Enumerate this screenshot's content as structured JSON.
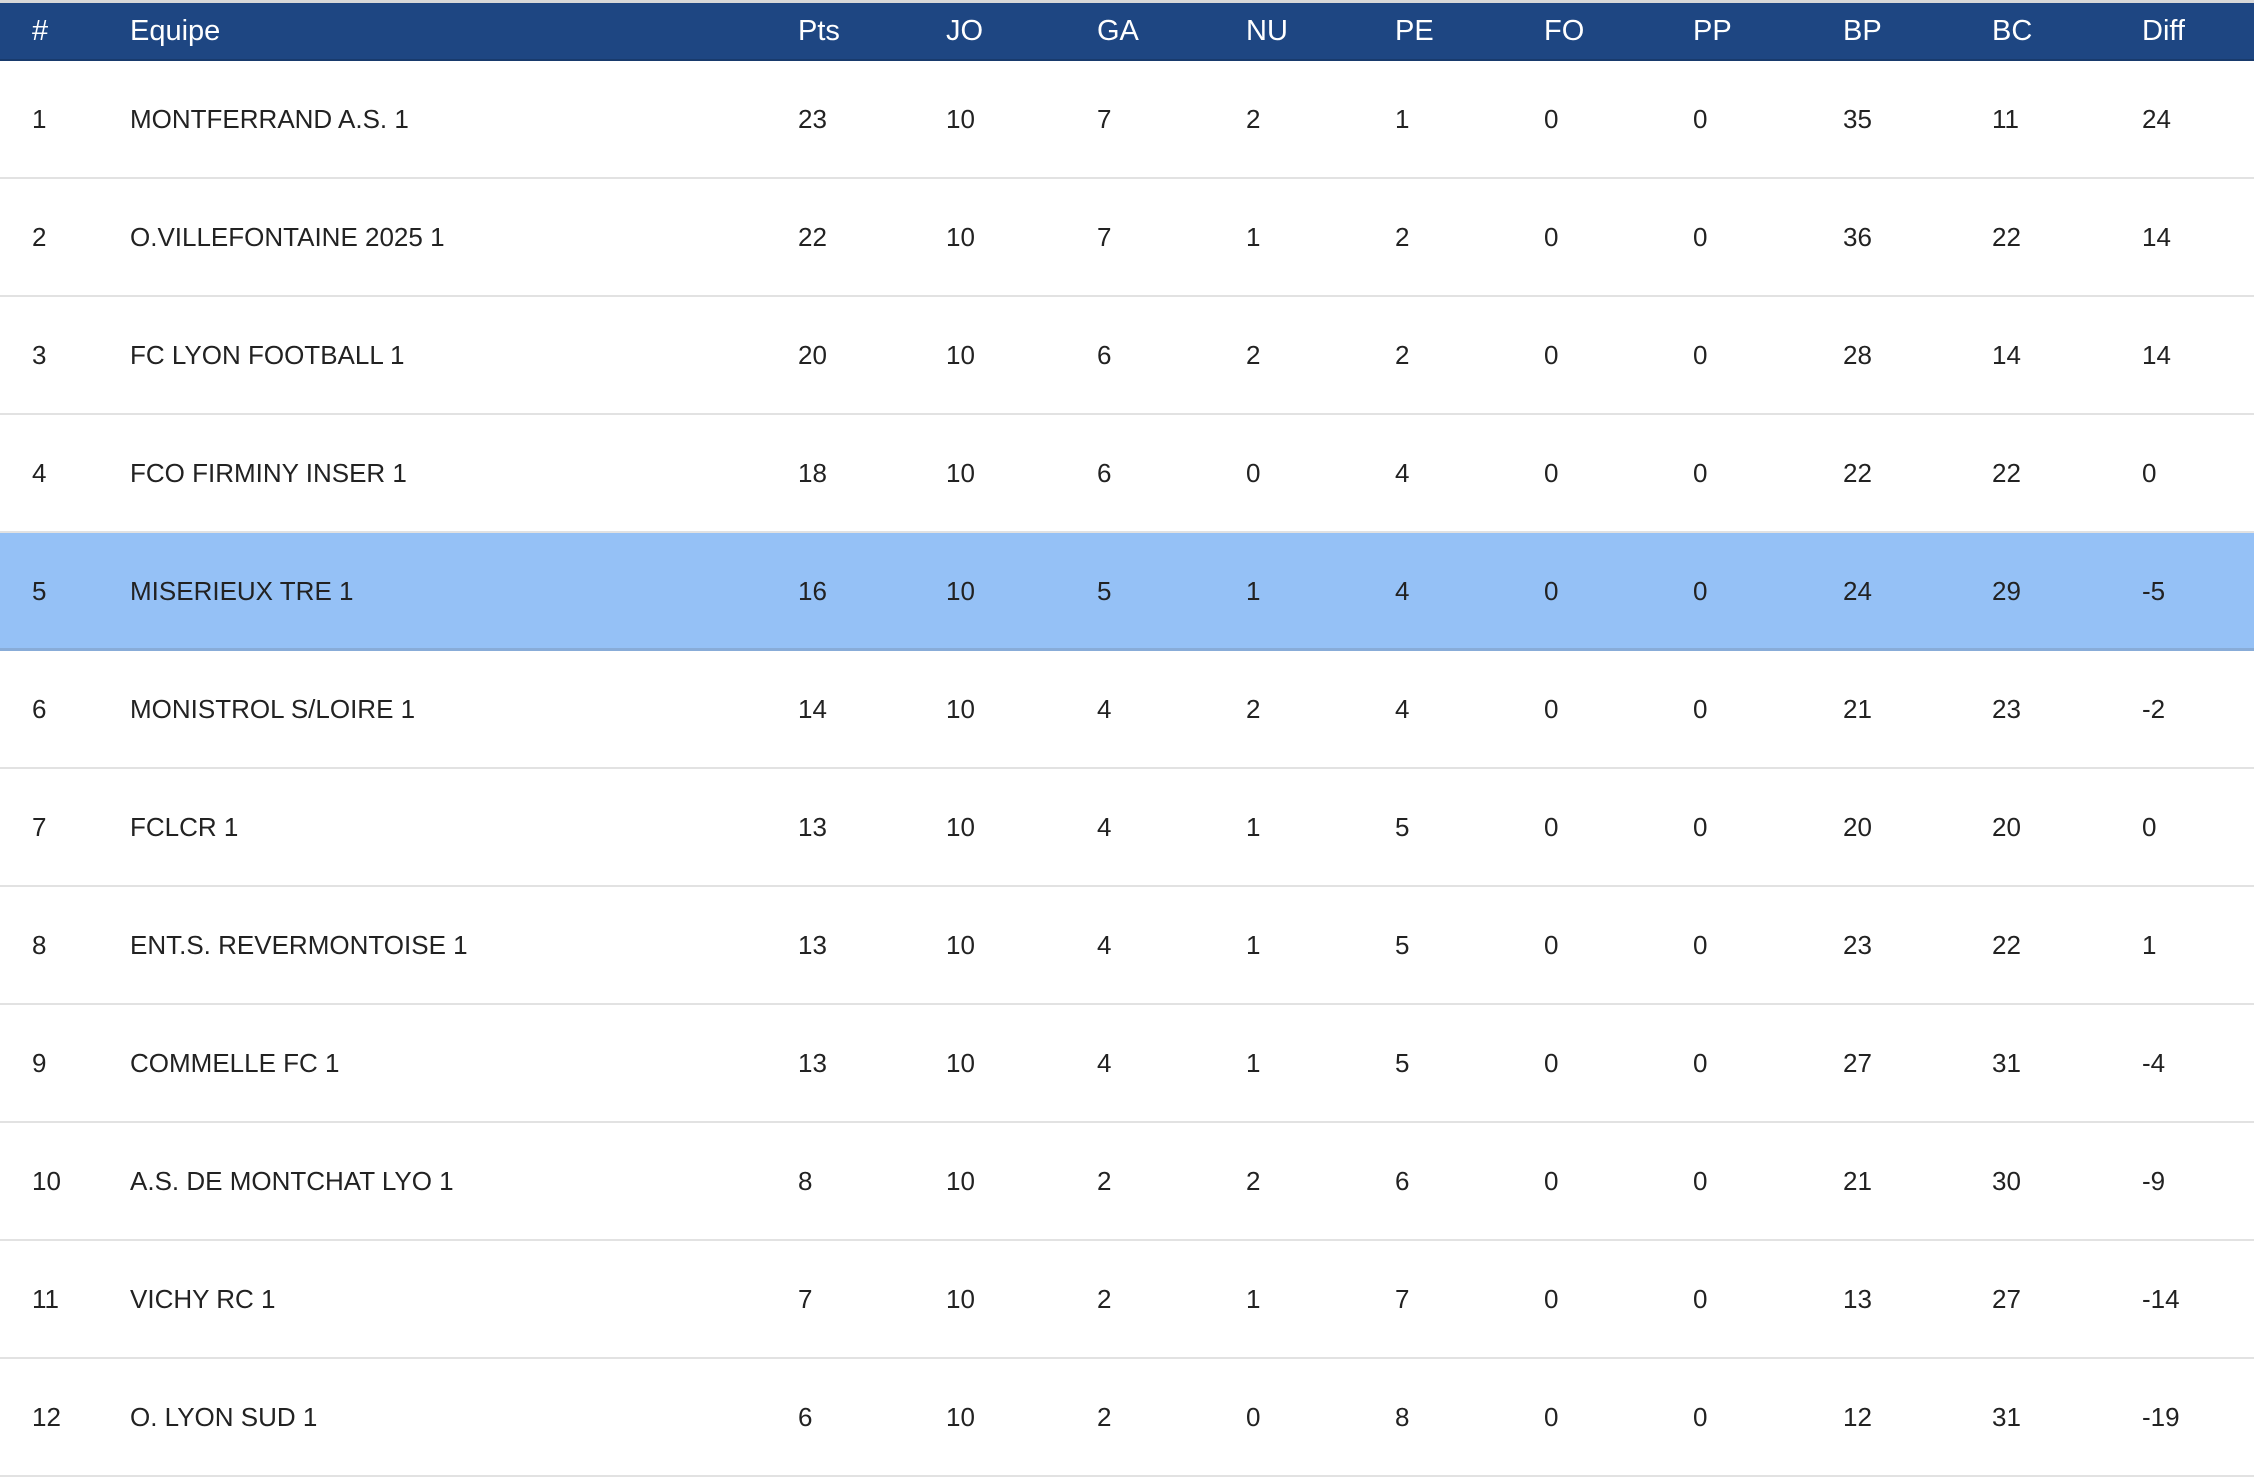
{
  "columns": [
    "#",
    "Equipe",
    "Pts",
    "JO",
    "GA",
    "NU",
    "PE",
    "FO",
    "PP",
    "BP",
    "BC",
    "Diff"
  ],
  "highlight_color": "#95c1f6",
  "header_color": "#1e4682",
  "highlighted_rank": 5,
  "rows": [
    [
      "1",
      "MONTFERRAND A.S. 1",
      "23",
      "10",
      "7",
      "2",
      "1",
      "0",
      "0",
      "35",
      "11",
      "24"
    ],
    [
      "2",
      "O.VILLEFONTAINE 2025 1",
      "22",
      "10",
      "7",
      "1",
      "2",
      "0",
      "0",
      "36",
      "22",
      "14"
    ],
    [
      "3",
      "FC LYON FOOTBALL 1",
      "20",
      "10",
      "6",
      "2",
      "2",
      "0",
      "0",
      "28",
      "14",
      "14"
    ],
    [
      "4",
      "FCO FIRMINY INSER 1",
      "18",
      "10",
      "6",
      "0",
      "4",
      "0",
      "0",
      "22",
      "22",
      "0"
    ],
    [
      "5",
      "MISERIEUX TRE 1",
      "16",
      "10",
      "5",
      "1",
      "4",
      "0",
      "0",
      "24",
      "29",
      "-5"
    ],
    [
      "6",
      "MONISTROL S/LOIRE 1",
      "14",
      "10",
      "4",
      "2",
      "4",
      "0",
      "0",
      "21",
      "23",
      "-2"
    ],
    [
      "7",
      "FCLCR 1",
      "13",
      "10",
      "4",
      "1",
      "5",
      "0",
      "0",
      "20",
      "20",
      "0"
    ],
    [
      "8",
      "ENT.S. REVERMONTOISE 1",
      "13",
      "10",
      "4",
      "1",
      "5",
      "0",
      "0",
      "23",
      "22",
      "1"
    ],
    [
      "9",
      "COMMELLE FC 1",
      "13",
      "10",
      "4",
      "1",
      "5",
      "0",
      "0",
      "27",
      "31",
      "-4"
    ],
    [
      "10",
      "A.S. DE MONTCHAT LYO 1",
      "8",
      "10",
      "2",
      "2",
      "6",
      "0",
      "0",
      "21",
      "30",
      "-9"
    ],
    [
      "11",
      "VICHY RC 1",
      "7",
      "10",
      "2",
      "1",
      "7",
      "0",
      "0",
      "13",
      "27",
      "-14"
    ],
    [
      "12",
      "O. LYON SUD 1",
      "6",
      "10",
      "2",
      "0",
      "8",
      "0",
      "0",
      "12",
      "31",
      "-19"
    ]
  ]
}
